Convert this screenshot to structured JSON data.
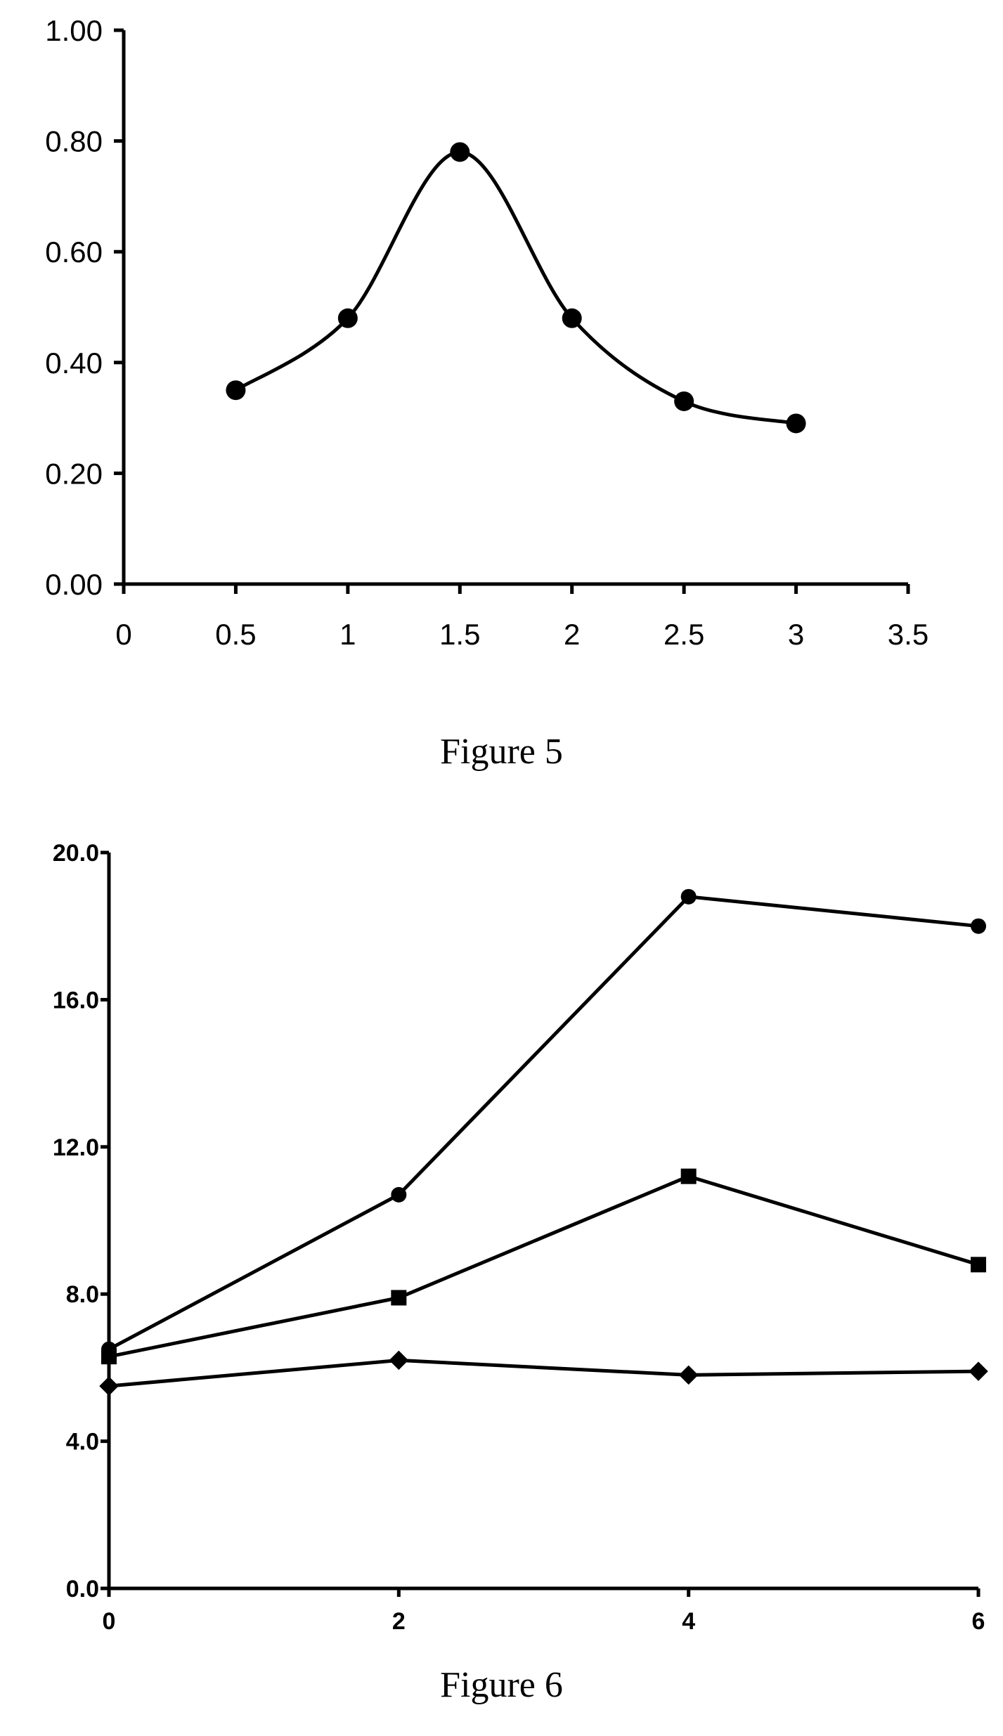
{
  "chart_data": [
    {
      "type": "line",
      "caption": "Figure 5",
      "title": "",
      "xlabel": "",
      "ylabel": "",
      "xlim": [
        0,
        3.5
      ],
      "ylim": [
        0,
        1.0
      ],
      "x_ticks": [
        "0",
        "0.5",
        "1",
        "1.5",
        "2",
        "2.5",
        "3",
        "3.5"
      ],
      "y_ticks": [
        "0.00",
        "0.20",
        "0.40",
        "0.60",
        "0.80",
        "1.00"
      ],
      "grid": false,
      "smooth": true,
      "series": [
        {
          "marker": "circle",
          "points": [
            {
              "x": 0.5,
              "y": 0.35
            },
            {
              "x": 1.0,
              "y": 0.48
            },
            {
              "x": 1.5,
              "y": 0.78
            },
            {
              "x": 2.0,
              "y": 0.48
            },
            {
              "x": 2.5,
              "y": 0.33
            },
            {
              "x": 3.0,
              "y": 0.29
            }
          ]
        }
      ]
    },
    {
      "type": "line",
      "caption": "Figure 6",
      "title": "",
      "xlabel": "",
      "ylabel": "",
      "xlim": [
        0,
        6
      ],
      "ylim": [
        0,
        20
      ],
      "x_ticks": [
        "0",
        "2",
        "4",
        "6"
      ],
      "y_ticks": [
        "0.0",
        "4.0",
        "8.0",
        "12.0",
        "16.0",
        "20.0"
      ],
      "grid": false,
      "smooth": false,
      "series": [
        {
          "marker": "circle",
          "points": [
            {
              "x": 0,
              "y": 6.5
            },
            {
              "x": 2,
              "y": 10.7
            },
            {
              "x": 4,
              "y": 18.8
            },
            {
              "x": 6,
              "y": 18.0
            }
          ]
        },
        {
          "marker": "square",
          "points": [
            {
              "x": 0,
              "y": 6.3
            },
            {
              "x": 2,
              "y": 7.9
            },
            {
              "x": 4,
              "y": 11.2
            },
            {
              "x": 6,
              "y": 8.8
            }
          ]
        },
        {
          "marker": "diamond",
          "points": [
            {
              "x": 0,
              "y": 5.5
            },
            {
              "x": 2,
              "y": 6.2
            },
            {
              "x": 4,
              "y": 5.8
            },
            {
              "x": 6,
              "y": 5.9
            }
          ]
        }
      ]
    }
  ]
}
